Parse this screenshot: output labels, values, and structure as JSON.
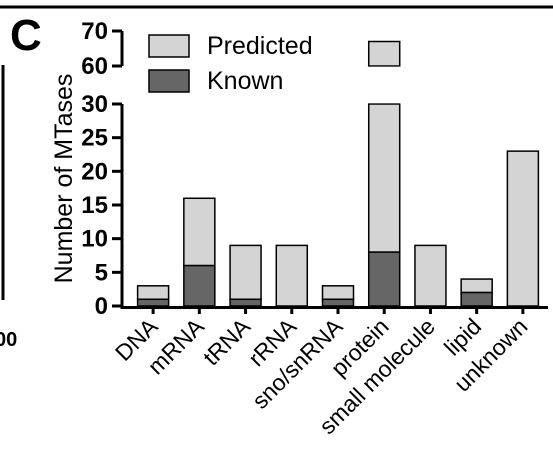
{
  "panel": {
    "letter": "C",
    "edge_fragment": "00"
  },
  "colors": {
    "predicted": "#d4d4d4",
    "known": "#666666",
    "axis": "#000000"
  },
  "chart_data": {
    "type": "bar",
    "stacked": true,
    "broken_y_axis": true,
    "ylabel": "Number of MTases",
    "xlabel": "",
    "ylim_lower": [
      0,
      30
    ],
    "ylim_upper": [
      60,
      70
    ],
    "yticks": [
      0,
      5,
      10,
      15,
      20,
      25,
      30,
      60,
      70
    ],
    "categories": [
      "DNA",
      "mRNA",
      "tRNA",
      "rRNA",
      "sno/snRNA",
      "protein",
      "small molecule",
      "lipid",
      "unknown"
    ],
    "series": [
      {
        "name": "Known",
        "values": [
          1,
          6,
          1,
          0,
          1,
          8,
          0,
          2,
          0
        ]
      },
      {
        "name": "Predicted",
        "values": [
          2,
          10,
          8,
          9,
          2,
          59,
          9,
          2,
          23
        ]
      }
    ],
    "totals": [
      3,
      16,
      9,
      9,
      3,
      67,
      9,
      4,
      23
    ],
    "legend": {
      "position": "top-left",
      "entries": [
        "Predicted",
        "Known"
      ]
    },
    "grid": false
  }
}
